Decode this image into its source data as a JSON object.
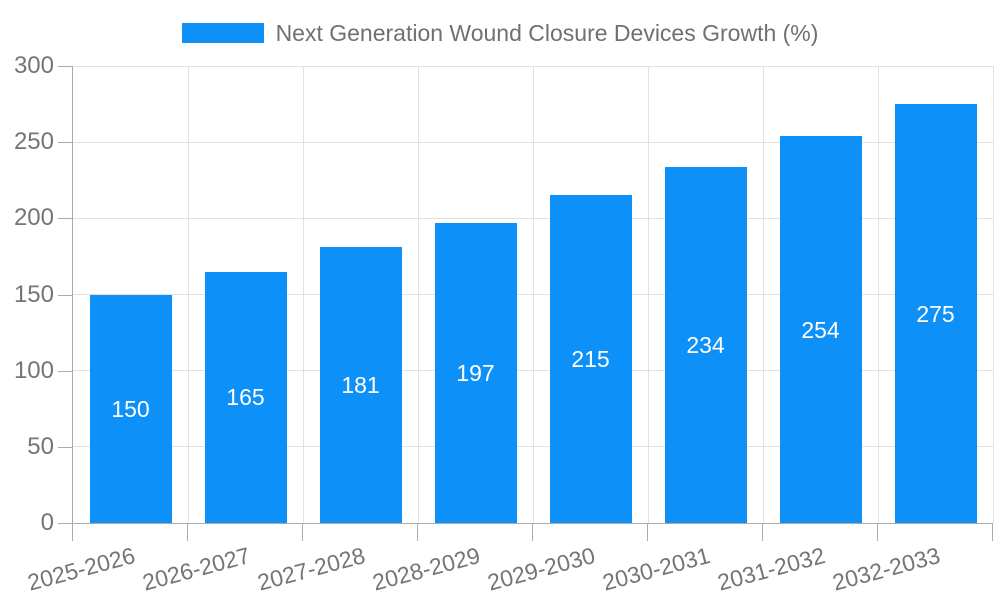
{
  "chart_data": {
    "type": "bar",
    "title": "Next Generation Wound Closure Devices Growth (%)",
    "categories": [
      "2025-2026",
      "2026-2027",
      "2027-2028",
      "2028-2029",
      "2029-2030",
      "2030-2031",
      "2031-2032",
      "2032-2033"
    ],
    "values": [
      150,
      165,
      181,
      197,
      215,
      234,
      254,
      275
    ],
    "xlabel": "",
    "ylabel": "",
    "ylim": [
      0,
      300
    ],
    "yticks": [
      0,
      50,
      100,
      150,
      200,
      250,
      300
    ],
    "grid": true,
    "legend": {
      "position": "top",
      "entries": [
        {
          "label": "Next Generation Wound Closure Devices Growth (%)",
          "color": "#0d90f8"
        }
      ]
    },
    "colors": {
      "bar": "#0d90f8",
      "bar_label": "#ffffff",
      "grid_line": "#e2e2e2",
      "axis_line": "#ababab",
      "tick_label": "#757575",
      "legend_text": "#707070",
      "background": "#ffffff"
    }
  }
}
